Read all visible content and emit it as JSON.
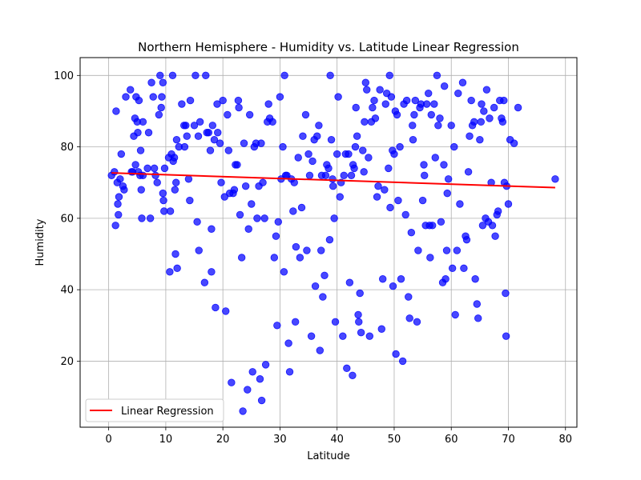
{
  "chart_data": {
    "type": "scatter",
    "title": "Northern Hemisphere - Humidity vs. Latitude Linear Regression",
    "xlabel": "Latitude",
    "ylabel": "Humidity",
    "xlim": [
      -5,
      82
    ],
    "ylim": [
      1.5,
      105
    ],
    "xticks": [
      0,
      10,
      20,
      30,
      40,
      50,
      60,
      70,
      80
    ],
    "yticks": [
      20,
      40,
      60,
      80,
      100
    ],
    "grid": true,
    "legend_position": "bottom-left",
    "colors": {
      "points": "#0000ff",
      "line": "#ff0000"
    },
    "series": [
      {
        "kind": "points",
        "points": [
          [
            0.5,
            72
          ],
          [
            1,
            73
          ],
          [
            1.2,
            58
          ],
          [
            1.3,
            90
          ],
          [
            1.5,
            70
          ],
          [
            1.6,
            64
          ],
          [
            1.7,
            61
          ],
          [
            1.8,
            66
          ],
          [
            2,
            71
          ],
          [
            2.2,
            78
          ],
          [
            2.5,
            69
          ],
          [
            2.7,
            68
          ],
          [
            3,
            94
          ],
          [
            3.8,
            96
          ],
          [
            4,
            73
          ],
          [
            4.2,
            73
          ],
          [
            4.4,
            83
          ],
          [
            4.6,
            88
          ],
          [
            4.7,
            75
          ],
          [
            4.8,
            94
          ],
          [
            5,
            87
          ],
          [
            5.1,
            84
          ],
          [
            5.2,
            73
          ],
          [
            5.3,
            93
          ],
          [
            5.5,
            72
          ],
          [
            5.6,
            79
          ],
          [
            5.7,
            68
          ],
          [
            5.8,
            60
          ],
          [
            6,
            72
          ],
          [
            6,
            87
          ],
          [
            6.8,
            74
          ],
          [
            7,
            84
          ],
          [
            7.3,
            60
          ],
          [
            7.5,
            98
          ],
          [
            7.8,
            94
          ],
          [
            8,
            74
          ],
          [
            8.2,
            72
          ],
          [
            8.5,
            70
          ],
          [
            8.8,
            89
          ],
          [
            9,
            100
          ],
          [
            9.2,
            91
          ],
          [
            9.3,
            94
          ],
          [
            9.5,
            98
          ],
          [
            9.5,
            67
          ],
          [
            9.6,
            65
          ],
          [
            9.7,
            62
          ],
          [
            9.8,
            74
          ],
          [
            10.5,
            77
          ],
          [
            10.7,
            45
          ],
          [
            10.8,
            62
          ],
          [
            11,
            78
          ],
          [
            11.2,
            100
          ],
          [
            11.3,
            76
          ],
          [
            11.5,
            77
          ],
          [
            11.6,
            68
          ],
          [
            11.7,
            50
          ],
          [
            11.8,
            70
          ],
          [
            11.9,
            82
          ],
          [
            12,
            46
          ],
          [
            12.3,
            80
          ],
          [
            12.8,
            92
          ],
          [
            13.2,
            86
          ],
          [
            13.3,
            80
          ],
          [
            13.5,
            86
          ],
          [
            13.7,
            83
          ],
          [
            14,
            71
          ],
          [
            14.2,
            65
          ],
          [
            14.3,
            93
          ],
          [
            15,
            86
          ],
          [
            15.2,
            100
          ],
          [
            15.5,
            59
          ],
          [
            15.7,
            83
          ],
          [
            15.8,
            51
          ],
          [
            16,
            87
          ],
          [
            16.8,
            42
          ],
          [
            17,
            100
          ],
          [
            17.2,
            84
          ],
          [
            17.5,
            84
          ],
          [
            17.8,
            79
          ],
          [
            18,
            57
          ],
          [
            18,
            45
          ],
          [
            18.2,
            86
          ],
          [
            18.5,
            82
          ],
          [
            18.7,
            35
          ],
          [
            19,
            92
          ],
          [
            19.1,
            84
          ],
          [
            19.5,
            81
          ],
          [
            19.7,
            70
          ],
          [
            20,
            93
          ],
          [
            20.3,
            66
          ],
          [
            20.5,
            34
          ],
          [
            20.8,
            89
          ],
          [
            21,
            79
          ],
          [
            21.2,
            67
          ],
          [
            21.5,
            14
          ],
          [
            21.8,
            67
          ],
          [
            22,
            68
          ],
          [
            22.2,
            75
          ],
          [
            22.5,
            75
          ],
          [
            22.7,
            93
          ],
          [
            22.8,
            91
          ],
          [
            23,
            61
          ],
          [
            23.3,
            49
          ],
          [
            23.5,
            6
          ],
          [
            23.7,
            81
          ],
          [
            24,
            69
          ],
          [
            24.3,
            12
          ],
          [
            24.5,
            57
          ],
          [
            24.7,
            89
          ],
          [
            25,
            64
          ],
          [
            25.2,
            17
          ],
          [
            25.5,
            80
          ],
          [
            25.8,
            81
          ],
          [
            26,
            60
          ],
          [
            26.3,
            69
          ],
          [
            26.5,
            15
          ],
          [
            26.7,
            81
          ],
          [
            26.8,
            9
          ],
          [
            27,
            70
          ],
          [
            27.3,
            60
          ],
          [
            27.5,
            19
          ],
          [
            27.8,
            87
          ],
          [
            28,
            92
          ],
          [
            28.2,
            88
          ],
          [
            28.7,
            87
          ],
          [
            29,
            49
          ],
          [
            29.3,
            55
          ],
          [
            29.5,
            30
          ],
          [
            29.7,
            59
          ],
          [
            30,
            94
          ],
          [
            30.2,
            71
          ],
          [
            30.5,
            80
          ],
          [
            30.7,
            45
          ],
          [
            30.8,
            100
          ],
          [
            31,
            72
          ],
          [
            31.2,
            72
          ],
          [
            31.5,
            25
          ],
          [
            31.7,
            17
          ],
          [
            32,
            71
          ],
          [
            32.3,
            62
          ],
          [
            32.5,
            70
          ],
          [
            32.7,
            31
          ],
          [
            32.8,
            52
          ],
          [
            33.2,
            77
          ],
          [
            33.5,
            49
          ],
          [
            33.8,
            63
          ],
          [
            34,
            83
          ],
          [
            34.5,
            89
          ],
          [
            34.7,
            51
          ],
          [
            35,
            78
          ],
          [
            35.2,
            72
          ],
          [
            35.5,
            27
          ],
          [
            35.7,
            76
          ],
          [
            36,
            82
          ],
          [
            36.2,
            41
          ],
          [
            36.5,
            83
          ],
          [
            36.8,
            86
          ],
          [
            37,
            23
          ],
          [
            37.2,
            51
          ],
          [
            37.3,
            72
          ],
          [
            37.5,
            38
          ],
          [
            37.8,
            44
          ],
          [
            38,
            72
          ],
          [
            38.2,
            75
          ],
          [
            38.5,
            74
          ],
          [
            38.7,
            54
          ],
          [
            38.8,
            100
          ],
          [
            39,
            82
          ],
          [
            39.2,
            71
          ],
          [
            39.3,
            69
          ],
          [
            39.5,
            60
          ],
          [
            39.7,
            31
          ],
          [
            40,
            78
          ],
          [
            40.2,
            94
          ],
          [
            40.5,
            66
          ],
          [
            40.7,
            70
          ],
          [
            41,
            27
          ],
          [
            41.2,
            72
          ],
          [
            41.5,
            78
          ],
          [
            41.7,
            18
          ],
          [
            42,
            78
          ],
          [
            42.2,
            42
          ],
          [
            42.5,
            72
          ],
          [
            42.7,
            16
          ],
          [
            42.8,
            75
          ],
          [
            43,
            74
          ],
          [
            43.2,
            80
          ],
          [
            43.3,
            91
          ],
          [
            43.5,
            83
          ],
          [
            43.7,
            33
          ],
          [
            43.8,
            31
          ],
          [
            44,
            39
          ],
          [
            44.2,
            28
          ],
          [
            44.5,
            79
          ],
          [
            44.7,
            73
          ],
          [
            44.8,
            87
          ],
          [
            45,
            98
          ],
          [
            45.2,
            96
          ],
          [
            45.5,
            77
          ],
          [
            45.7,
            27
          ],
          [
            46,
            87
          ],
          [
            46.2,
            91
          ],
          [
            46.5,
            93
          ],
          [
            46.7,
            88
          ],
          [
            47,
            66
          ],
          [
            47.2,
            69
          ],
          [
            47.5,
            96
          ],
          [
            47.8,
            29
          ],
          [
            48,
            43
          ],
          [
            48.3,
            68
          ],
          [
            48.5,
            92
          ],
          [
            48.7,
            95
          ],
          [
            49,
            74
          ],
          [
            49.2,
            100
          ],
          [
            49.3,
            63
          ],
          [
            49.5,
            94
          ],
          [
            49.7,
            79
          ],
          [
            49.8,
            41
          ],
          [
            50,
            78
          ],
          [
            50.2,
            90
          ],
          [
            50.3,
            22
          ],
          [
            50.5,
            89
          ],
          [
            50.7,
            65
          ],
          [
            51,
            80
          ],
          [
            51.2,
            43
          ],
          [
            51.5,
            20
          ],
          [
            51.7,
            92
          ],
          [
            52,
            61
          ],
          [
            52.2,
            93
          ],
          [
            52.5,
            38
          ],
          [
            52.7,
            32
          ],
          [
            53,
            56
          ],
          [
            53.2,
            86
          ],
          [
            53.3,
            82
          ],
          [
            53.5,
            89
          ],
          [
            53.7,
            93
          ],
          [
            54,
            31
          ],
          [
            54.2,
            51
          ],
          [
            54.5,
            91
          ],
          [
            54.7,
            92
          ],
          [
            55,
            65
          ],
          [
            55.2,
            75
          ],
          [
            55.3,
            72
          ],
          [
            55.5,
            58
          ],
          [
            55.7,
            92
          ],
          [
            56,
            95
          ],
          [
            56.2,
            58
          ],
          [
            56.3,
            49
          ],
          [
            56.5,
            89
          ],
          [
            56.7,
            58
          ],
          [
            57,
            92
          ],
          [
            57.2,
            77
          ],
          [
            57.5,
            100
          ],
          [
            57.7,
            86
          ],
          [
            58,
            88
          ],
          [
            58.2,
            59
          ],
          [
            58.5,
            42
          ],
          [
            58.7,
            75
          ],
          [
            58.8,
            97
          ],
          [
            59,
            43
          ],
          [
            59.2,
            51
          ],
          [
            59.3,
            67
          ],
          [
            59.5,
            71
          ],
          [
            60,
            86
          ],
          [
            60.2,
            46
          ],
          [
            60.5,
            80
          ],
          [
            60.7,
            33
          ],
          [
            61,
            51
          ],
          [
            61.2,
            95
          ],
          [
            61.5,
            64
          ],
          [
            62,
            98
          ],
          [
            62.2,
            46
          ],
          [
            62.5,
            55
          ],
          [
            62.7,
            54
          ],
          [
            63,
            73
          ],
          [
            63.2,
            83
          ],
          [
            63.5,
            93
          ],
          [
            63.7,
            86
          ],
          [
            64,
            87
          ],
          [
            64.2,
            43
          ],
          [
            64.5,
            36
          ],
          [
            64.7,
            32
          ],
          [
            65,
            82
          ],
          [
            65.2,
            87
          ],
          [
            65.3,
            92
          ],
          [
            65.5,
            58
          ],
          [
            65.7,
            90
          ],
          [
            66,
            60
          ],
          [
            66.2,
            96
          ],
          [
            66.5,
            59
          ],
          [
            66.7,
            88
          ],
          [
            67,
            70
          ],
          [
            67.2,
            58
          ],
          [
            67.5,
            91
          ],
          [
            67.7,
            55
          ],
          [
            68,
            61
          ],
          [
            68.2,
            62
          ],
          [
            68.5,
            93
          ],
          [
            68.8,
            88
          ],
          [
            69,
            87
          ],
          [
            69.2,
            93
          ],
          [
            69.3,
            70
          ],
          [
            69.5,
            39
          ],
          [
            69.6,
            27
          ],
          [
            69.7,
            69
          ],
          [
            70,
            64
          ],
          [
            70.3,
            82
          ],
          [
            71,
            81
          ],
          [
            71.7,
            91
          ],
          [
            78.2,
            71
          ]
        ]
      },
      {
        "kind": "line",
        "name": "Linear Regression",
        "x": [
          0.5,
          78.2
        ],
        "y": [
          72.7,
          68.6
        ]
      }
    ]
  }
}
